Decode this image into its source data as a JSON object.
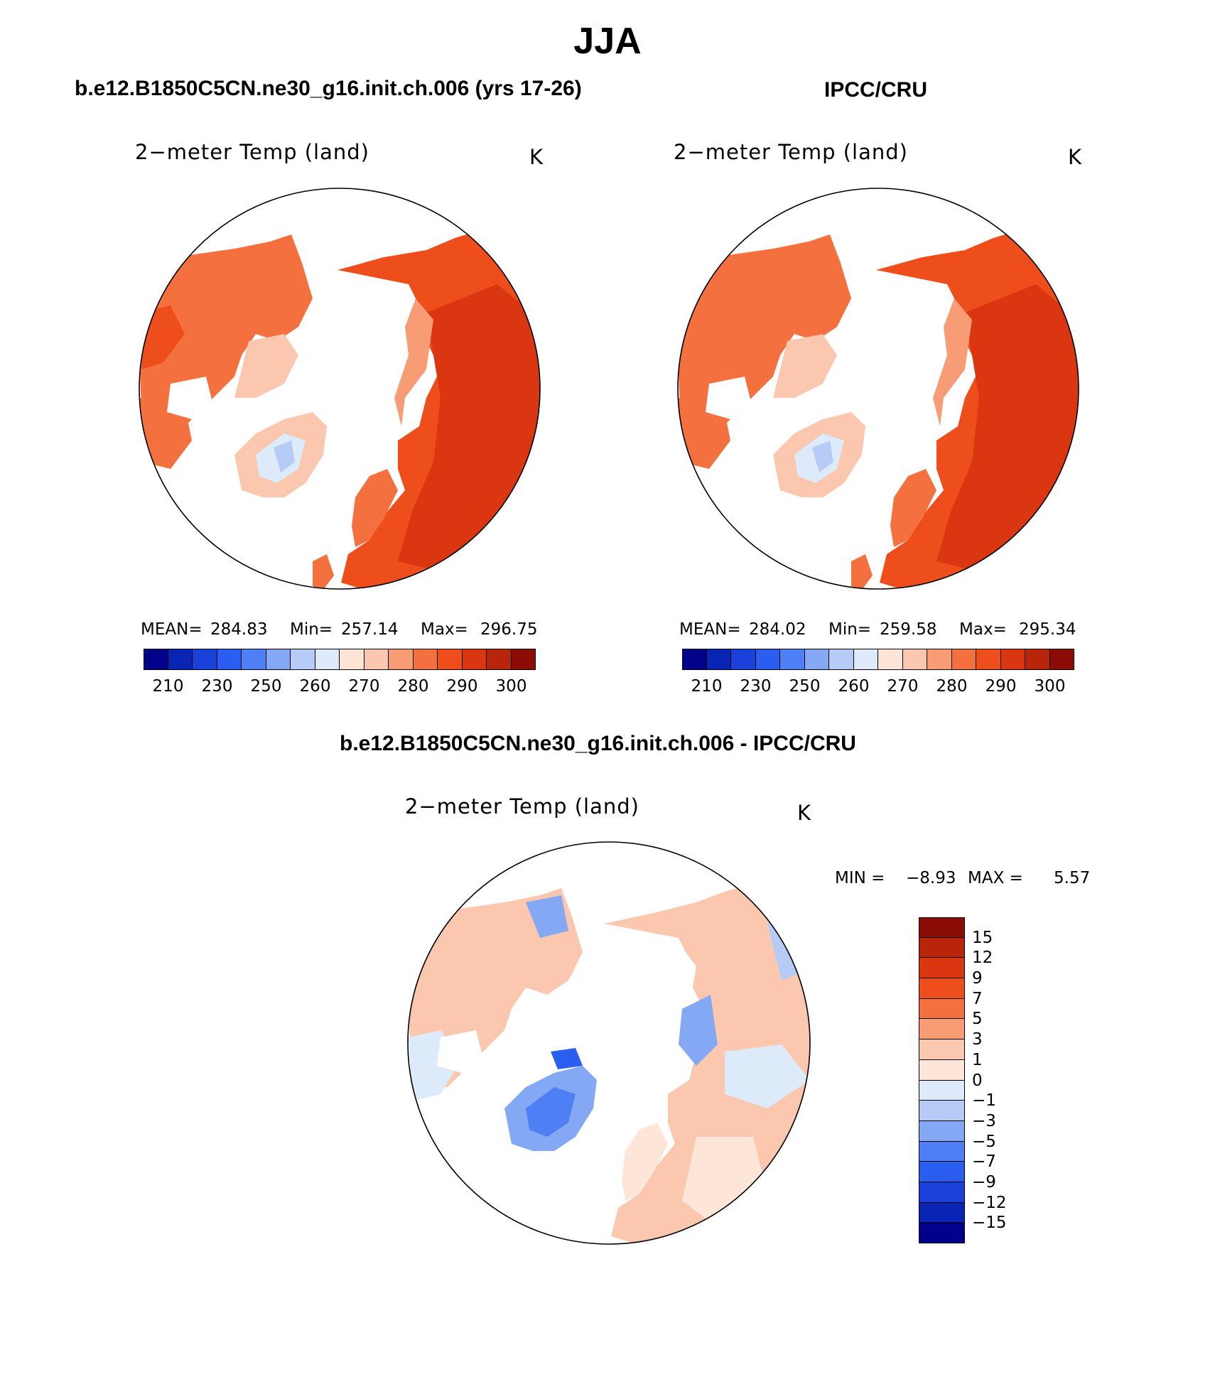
{
  "figure": {
    "title": "JJA"
  },
  "panels": {
    "model": {
      "title": "b.e12.B1850C5CN.ne30_g16.init.ch.006 (yrs 17-26)",
      "variable": "2−meter Temp (land)",
      "units": "K",
      "mean_label": "MEAN=",
      "mean": "284.83",
      "min_label": "Min=",
      "min": "257.14",
      "max_label": "Max=",
      "max": "296.75"
    },
    "obs": {
      "title": "IPCC/CRU",
      "variable": "2−meter Temp (land)",
      "units": "K",
      "mean_label": "MEAN=",
      "mean": "284.02",
      "min_label": "Min=",
      "min": "259.58",
      "max_label": "Max=",
      "max": "295.34"
    },
    "diff": {
      "title": "b.e12.B1850C5CN.ne30_g16.init.ch.006 - IPCC/CRU",
      "variable": "2−meter Temp (land)",
      "units": "K",
      "min_label": "MIN =",
      "min": "−8.93",
      "max_label": "MAX =",
      "max": "5.57"
    }
  },
  "colorbars": {
    "abs_colors": [
      "#00008b",
      "#0a24b5",
      "#1a41d9",
      "#2a5ef0",
      "#4f7ff5",
      "#85a8f5",
      "#b6cbf5",
      "#dceafa",
      "#fde6d8",
      "#fbc7ae",
      "#f89c76",
      "#f4703f",
      "#ee4d1c",
      "#d93611",
      "#b8250b",
      "#8b0d05"
    ],
    "abs_labels": [
      "210",
      "230",
      "250",
      "260",
      "270",
      "280",
      "290",
      "300"
    ],
    "diff_colors": [
      "#00008b",
      "#0a24b5",
      "#1a41d9",
      "#2a5ef0",
      "#4f7ff5",
      "#85a8f5",
      "#b6cbf5",
      "#dceafa",
      "#fde6d8",
      "#fbc7ae",
      "#f89c76",
      "#f4703f",
      "#ee4d1c",
      "#d93611",
      "#b8250b",
      "#8b0d05"
    ],
    "diff_labels": [
      "−15",
      "−12",
      "−9",
      "−7",
      "−5",
      "−3",
      "−1",
      "0",
      "1",
      "3",
      "5",
      "7",
      "9",
      "12",
      "15"
    ]
  },
  "chart_data": [
    {
      "type": "heatmap",
      "title": "2−meter Temp (land)",
      "units": "K",
      "projection": "north polar stereographic",
      "region": "Northern Hemisphere land",
      "mean": 284.83,
      "min": 257.14,
      "max": 296.75,
      "contour_levels": [
        210,
        220,
        230,
        240,
        250,
        255,
        260,
        265,
        270,
        275,
        280,
        285,
        290,
        295,
        300
      ]
    },
    {
      "type": "heatmap",
      "title": "2−meter Temp (land)",
      "units": "K",
      "projection": "north polar stereographic",
      "region": "Northern Hemisphere land",
      "mean": 284.02,
      "min": 259.58,
      "max": 295.34,
      "contour_levels": [
        210,
        220,
        230,
        240,
        250,
        255,
        260,
        265,
        270,
        275,
        280,
        285,
        290,
        295,
        300
      ]
    },
    {
      "type": "heatmap",
      "title": "2−meter Temp (land)",
      "units": "K",
      "projection": "north polar stereographic",
      "region": "Northern Hemisphere land",
      "min": -8.93,
      "max": 5.57,
      "contour_levels": [
        -15,
        -12,
        -9,
        -7,
        -5,
        -3,
        -1,
        0,
        1,
        3,
        5,
        7,
        9,
        12,
        15
      ]
    }
  ]
}
